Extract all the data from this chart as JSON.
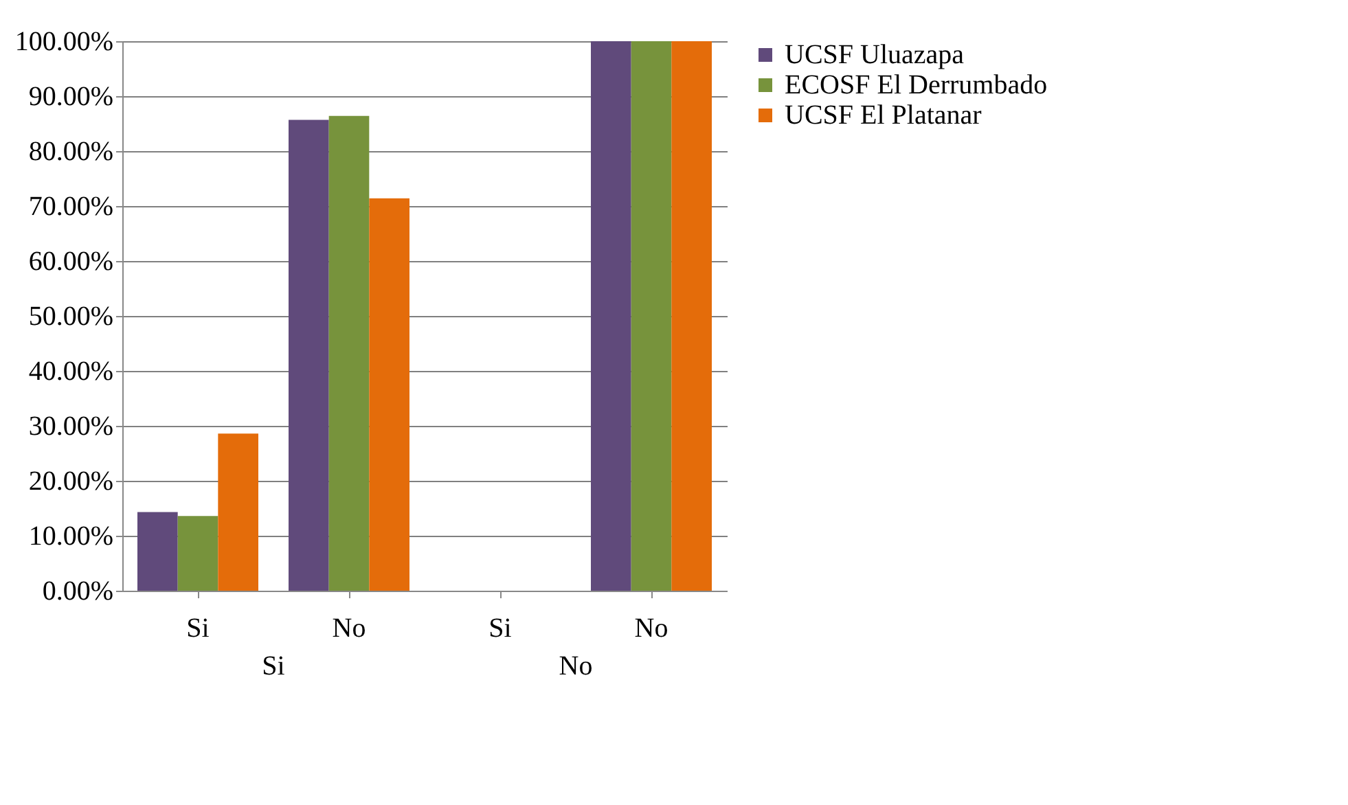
{
  "chart_data": {
    "type": "bar",
    "categories": [
      "Si",
      "No",
      "Si",
      "No"
    ],
    "series": [
      {
        "name": "UCSF Uluazapa",
        "color": "#604a7b",
        "values": [
          14.3,
          85.7,
          0,
          100
        ]
      },
      {
        "name": "ECOSF El Derrumbado",
        "color": "#77933c",
        "values": [
          13.6,
          86.4,
          0,
          100
        ]
      },
      {
        "name": "UCSF El Platanar",
        "color": "#e46c0a",
        "values": [
          28.6,
          71.4,
          0,
          100
        ]
      }
    ],
    "ylim": [
      0,
      100
    ],
    "yticks": [
      {
        "value": 0,
        "label": "0.00%"
      },
      {
        "value": 10,
        "label": "10.00%"
      },
      {
        "value": 20,
        "label": "20.00%"
      },
      {
        "value": 30,
        "label": "30.00%"
      },
      {
        "value": 40,
        "label": "40.00%"
      },
      {
        "value": 50,
        "label": "50.00%"
      },
      {
        "value": 60,
        "label": "60.00%"
      },
      {
        "value": 70,
        "label": "70.00%"
      },
      {
        "value": 80,
        "label": "80.00%"
      },
      {
        "value": 90,
        "label": "90.00%"
      },
      {
        "value": 100,
        "label": "100.00%"
      }
    ],
    "annotations": [
      "Si",
      "No"
    ],
    "grid": "y",
    "legend": "right"
  }
}
